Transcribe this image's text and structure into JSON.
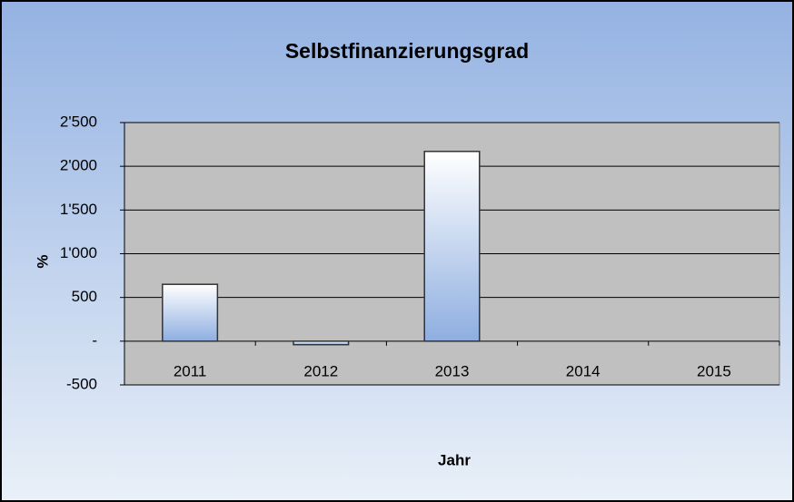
{
  "chart_data": {
    "type": "bar",
    "title": "Selbstfinanzierungsgrad",
    "x_label": "Jahr",
    "y_label": "%",
    "categories": [
      "2011",
      "2012",
      "2013",
      "2014",
      "2015"
    ],
    "values": [
      650,
      -40,
      2170,
      null,
      null
    ],
    "color": "#8eaee0",
    "ylim": [
      -500,
      2500
    ],
    "yticks": [
      -500,
      {
        "value": 0,
        "label": "-"
      },
      500,
      {
        "value": 1000,
        "label": "1'000"
      },
      {
        "value": 1500,
        "label": "1'500"
      },
      {
        "value": 2000,
        "label": "2'000"
      },
      {
        "value": 2500,
        "label": "2'500"
      }
    ],
    "grid": true
  }
}
